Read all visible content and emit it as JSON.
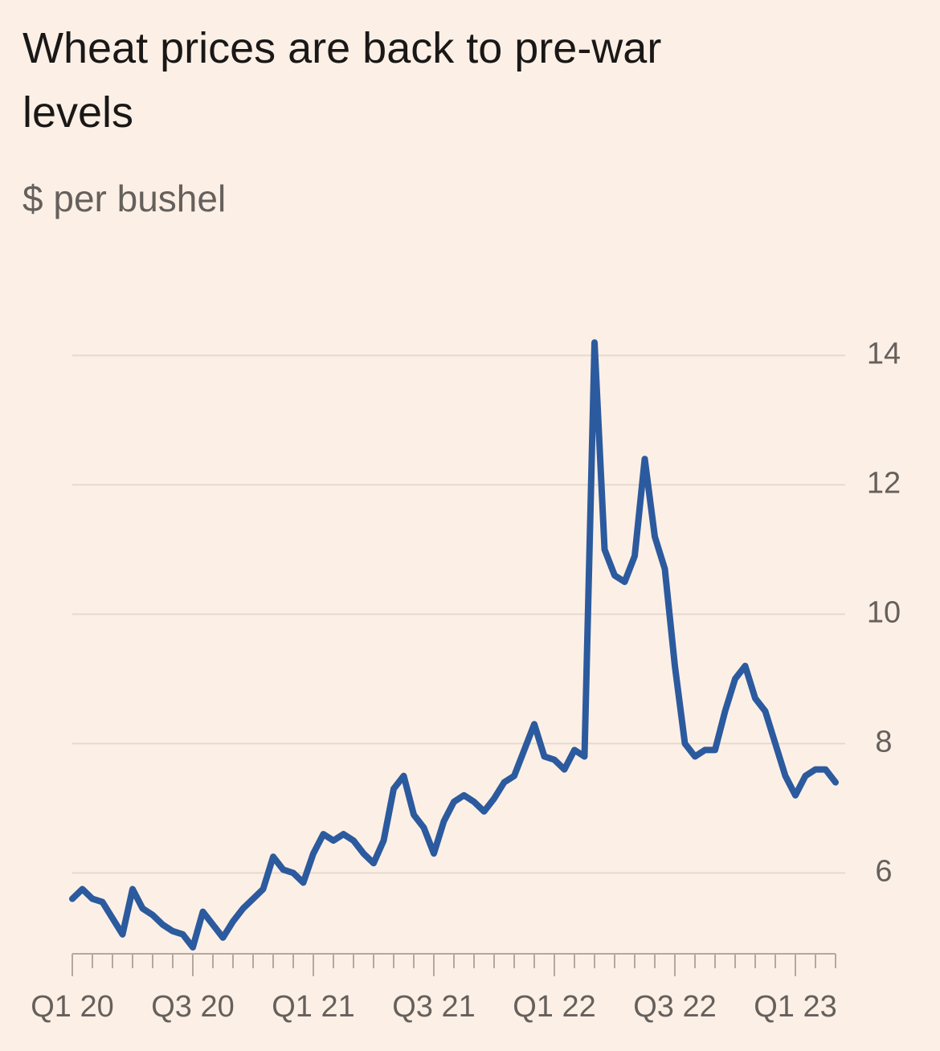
{
  "chart_data": {
    "type": "line",
    "title": "Wheat prices are back to pre-war levels",
    "subtitle": "$ per bushel",
    "categories": [
      "Q1 20",
      null,
      null,
      null,
      null,
      null,
      null,
      null,
      null,
      null,
      null,
      null,
      "Q3 20",
      null,
      null,
      null,
      null,
      null,
      null,
      null,
      null,
      null,
      null,
      null,
      "Q1 21",
      null,
      null,
      null,
      null,
      null,
      null,
      null,
      null,
      null,
      null,
      null,
      "Q3 21",
      null,
      null,
      null,
      null,
      null,
      null,
      null,
      null,
      null,
      null,
      null,
      "Q1 22",
      null,
      null,
      null,
      null,
      null,
      null,
      null,
      null,
      null,
      null,
      null,
      "Q3 22",
      null,
      null,
      null,
      null,
      null,
      null,
      null,
      null,
      null,
      null,
      null,
      "Q1 23",
      null,
      null,
      null,
      null
    ],
    "values": [
      5.6,
      5.75,
      5.6,
      5.55,
      5.3,
      5.05,
      5.75,
      5.45,
      5.35,
      5.2,
      5.1,
      5.05,
      4.85,
      5.4,
      5.2,
      5.0,
      5.25,
      5.45,
      5.6,
      5.75,
      6.25,
      6.05,
      6.0,
      5.85,
      6.3,
      6.6,
      6.5,
      6.6,
      6.5,
      6.3,
      6.15,
      6.5,
      7.3,
      7.5,
      6.9,
      6.7,
      6.3,
      6.8,
      7.1,
      7.2,
      7.1,
      6.95,
      7.15,
      7.4,
      7.5,
      7.9,
      8.3,
      7.8,
      7.75,
      7.6,
      7.9,
      7.8,
      14.2,
      11.0,
      10.6,
      10.5,
      10.9,
      12.4,
      11.2,
      10.7,
      9.2,
      8.0,
      7.8,
      7.9,
      7.9,
      8.5,
      9.0,
      9.2,
      8.7,
      8.5,
      8.0,
      7.5,
      7.2,
      7.5,
      7.6,
      7.6,
      7.4
    ],
    "color": "#2c5a9e",
    "ylim": [
      4.75,
      14.5
    ],
    "yticks": [
      6,
      8,
      10,
      12,
      14
    ],
    "grid": true
  }
}
